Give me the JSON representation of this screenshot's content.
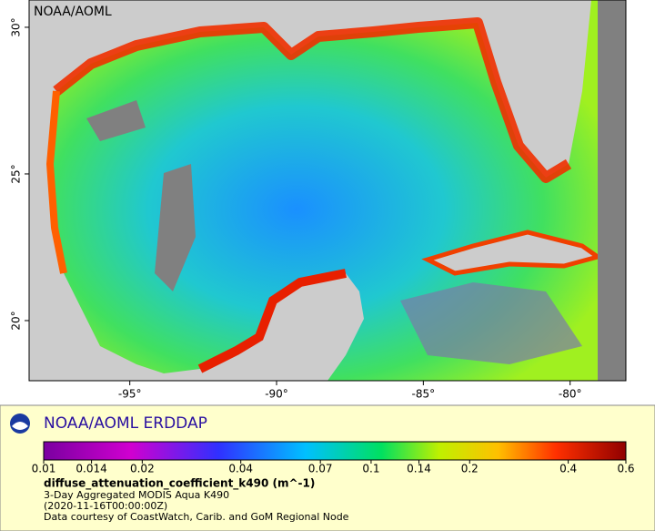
{
  "map": {
    "label": "NOAA/AOML",
    "lon_range": [
      -98.43,
      -78.1
    ],
    "lat_range": [
      17.95,
      30.93
    ],
    "lon_ticks": [
      {
        "value": -95,
        "label": "-95°"
      },
      {
        "value": -90,
        "label": "-90°"
      },
      {
        "value": -85,
        "label": "-85°"
      },
      {
        "value": -80,
        "label": "-80°"
      }
    ],
    "lat_ticks": [
      {
        "value": 20,
        "label": "20°"
      },
      {
        "value": 25,
        "label": "25°"
      },
      {
        "value": 30,
        "label": "30°"
      }
    ]
  },
  "legend": {
    "title": "NOAA/AOML ERDDAP",
    "colorbar": {
      "range": [
        0.01,
        0.6
      ],
      "scale": "log",
      "ticks": [
        0.01,
        0.014,
        0.02,
        0.04,
        0.07,
        0.1,
        0.14,
        0.2,
        0.4,
        0.6
      ]
    },
    "variable": "diffuse_attenuation_coefficient_k490 (m^-1)",
    "lines": [
      "3-Day Aggregated MODIS Aqua K490",
      "(2020-11-16T00:00:00Z)",
      "Data courtesy of CoastWatch, Carib. and GoM Regional Node"
    ]
  }
}
